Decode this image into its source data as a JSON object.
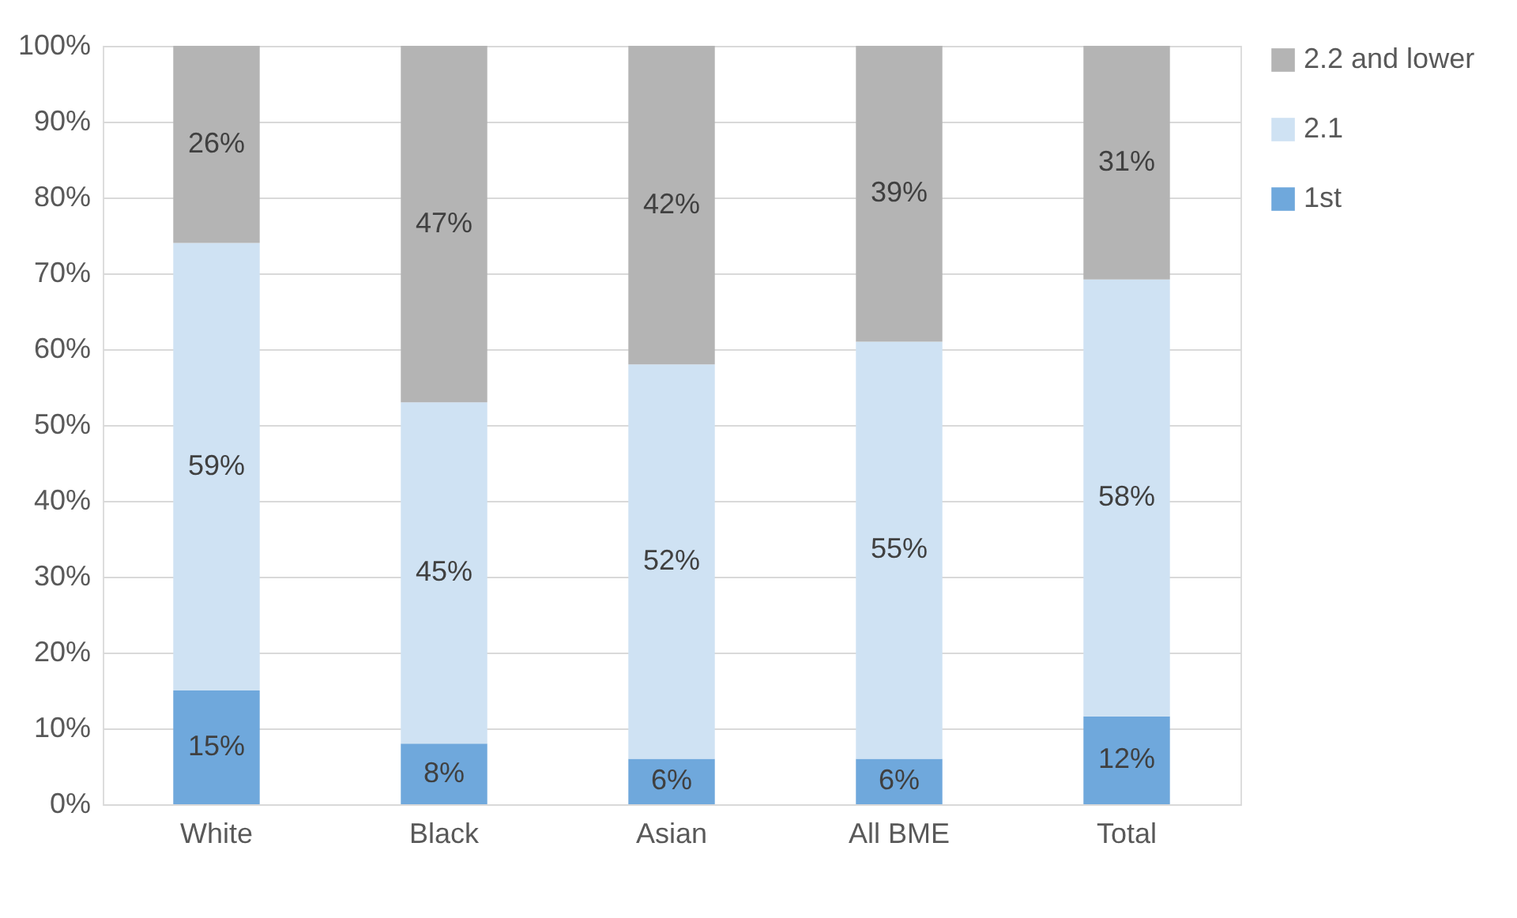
{
  "chart_data": {
    "type": "bar",
    "stacked": true,
    "categories": [
      "White",
      "Black",
      "Asian",
      "All BME",
      "Total"
    ],
    "series": [
      {
        "name": "1st",
        "color": "#6fa8dc",
        "values": [
          15,
          8,
          6,
          6,
          11.6
        ],
        "value_labels": [
          "15%",
          "8%",
          "6%",
          "6%",
          "12%"
        ]
      },
      {
        "name": "2.1",
        "color": "#cfe2f3",
        "values": [
          59,
          45,
          52,
          55,
          57.6
        ],
        "value_labels": [
          "59%",
          "45%",
          "52%",
          "55%",
          "58%"
        ]
      },
      {
        "name": "2.2 and lower",
        "color": "#b4b4b4",
        "values": [
          26,
          47,
          42,
          39,
          30.8
        ],
        "value_labels": [
          "26%",
          "47%",
          "42%",
          "39%",
          "31%"
        ]
      }
    ],
    "ylim": [
      0,
      100
    ],
    "yticks": [
      {
        "value": 0,
        "label": "0%"
      },
      {
        "value": 10,
        "label": "10%"
      },
      {
        "value": 20,
        "label": "20%"
      },
      {
        "value": 30,
        "label": "30%"
      },
      {
        "value": 40,
        "label": "40%"
      },
      {
        "value": 50,
        "label": "50%"
      },
      {
        "value": 60,
        "label": "60%"
      },
      {
        "value": 70,
        "label": "70%"
      },
      {
        "value": 80,
        "label": "80%"
      },
      {
        "value": 90,
        "label": "90%"
      },
      {
        "value": 100,
        "label": "100%"
      }
    ],
    "grid": "y",
    "legend": "right"
  }
}
